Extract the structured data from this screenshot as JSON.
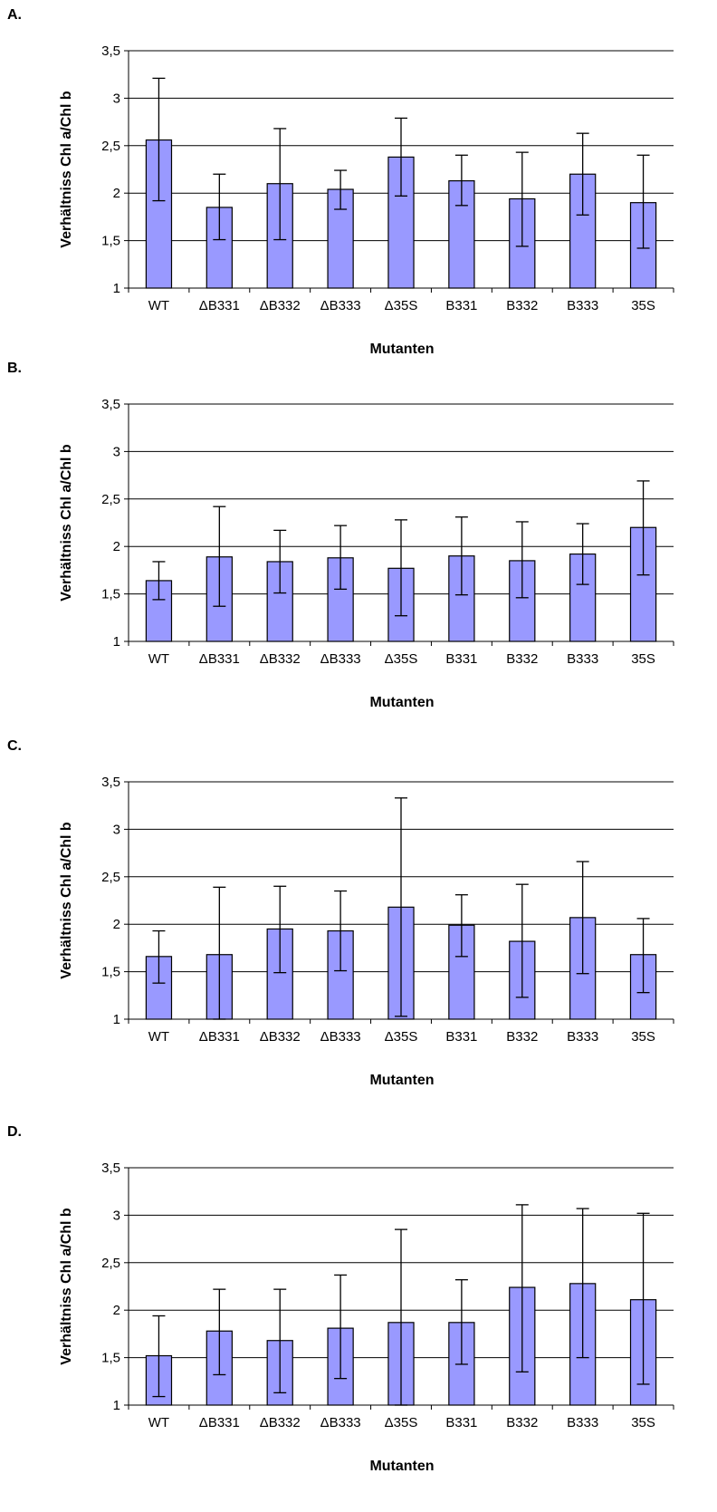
{
  "chart_data": [
    {
      "type": "bar",
      "panel_label": "A.",
      "categories": [
        "WT",
        "ΔB331",
        "ΔB332",
        "ΔB333",
        "Δ35S",
        "B331",
        "B332",
        "B333",
        "35S"
      ],
      "values": [
        2.56,
        1.85,
        2.1,
        2.04,
        2.38,
        2.13,
        1.94,
        2.2,
        1.9
      ],
      "error_low": [
        1.92,
        1.51,
        1.51,
        1.83,
        1.97,
        1.87,
        1.44,
        1.77,
        1.42
      ],
      "error_high": [
        3.21,
        2.2,
        2.68,
        2.24,
        2.79,
        2.4,
        2.43,
        2.63,
        2.4
      ],
      "yticks": [
        "1",
        "1,5",
        "2",
        "2,5",
        "3",
        "3,5"
      ],
      "ylim": [
        1,
        3.5
      ],
      "xlabel": "Mutanten",
      "ylabel": "Verhältniss Chl a/Chl b",
      "grid": true,
      "bar_color": "#9999ff"
    },
    {
      "type": "bar",
      "panel_label": "B.",
      "categories": [
        "WT",
        "ΔB331",
        "ΔB332",
        "ΔB333",
        "Δ35S",
        "B331",
        "B332",
        "B333",
        "35S"
      ],
      "values": [
        1.64,
        1.89,
        1.84,
        1.88,
        1.77,
        1.9,
        1.85,
        1.92,
        2.2
      ],
      "error_low": [
        1.44,
        1.37,
        1.51,
        1.55,
        1.27,
        1.49,
        1.46,
        1.6,
        1.7
      ],
      "error_high": [
        1.84,
        2.42,
        2.17,
        2.22,
        2.28,
        2.31,
        2.26,
        2.24,
        2.69
      ],
      "yticks": [
        "1",
        "1,5",
        "2",
        "2,5",
        "3",
        "3,5"
      ],
      "ylim": [
        1,
        3.5
      ],
      "xlabel": "Mutanten",
      "ylabel": "Verhältniss Chl a/Chl b",
      "grid": true,
      "bar_color": "#9999ff"
    },
    {
      "type": "bar",
      "panel_label": "C.",
      "categories": [
        "WT",
        "ΔB331",
        "ΔB332",
        "ΔB333",
        "Δ35S",
        "B331",
        "B332",
        "B333",
        "35S"
      ],
      "values": [
        1.66,
        1.68,
        1.95,
        1.93,
        2.18,
        1.99,
        1.82,
        2.07,
        1.68
      ],
      "error_low": [
        1.38,
        1.0,
        1.49,
        1.51,
        1.03,
        1.66,
        1.23,
        1.48,
        1.28
      ],
      "error_high": [
        1.93,
        2.39,
        2.4,
        2.35,
        3.33,
        2.31,
        2.42,
        2.66,
        2.06
      ],
      "yticks": [
        "1",
        "1,5",
        "2",
        "2,5",
        "3",
        "3,5"
      ],
      "ylim": [
        1,
        3.5
      ],
      "xlabel": "Mutanten",
      "ylabel": "Verhältniss Chl a/Chl b",
      "grid": true,
      "bar_color": "#9999ff"
    },
    {
      "type": "bar",
      "panel_label": "D.",
      "categories": [
        "WT",
        "ΔB331",
        "ΔB332",
        "ΔB333",
        "Δ35S",
        "B331",
        "B332",
        "B333",
        "35S"
      ],
      "values": [
        1.52,
        1.78,
        1.68,
        1.81,
        1.87,
        1.87,
        2.24,
        2.28,
        2.11
      ],
      "error_low": [
        1.09,
        1.32,
        1.13,
        1.28,
        1.0,
        1.43,
        1.35,
        1.5,
        1.22
      ],
      "error_high": [
        1.94,
        2.22,
        2.22,
        2.37,
        2.85,
        2.32,
        3.11,
        3.07,
        3.02
      ],
      "yticks": [
        "1",
        "1,5",
        "2",
        "2,5",
        "3",
        "3,5"
      ],
      "ylim": [
        1,
        3.5
      ],
      "xlabel": "Mutanten",
      "ylabel": "Verhältniss Chl a/Chl b",
      "grid": true,
      "bar_color": "#9999ff"
    }
  ]
}
